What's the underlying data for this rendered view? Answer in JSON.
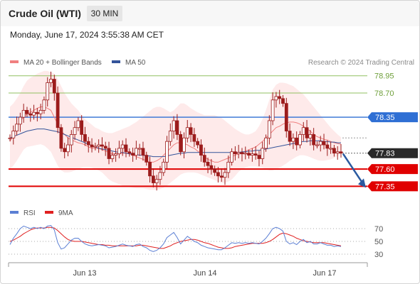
{
  "header": {
    "title": "Crude Oil (WTI)",
    "timeframe": "30 MIN",
    "datetime": "Monday, June 17, 2024 3:55:38 AM CET"
  },
  "legend": {
    "ma20_label": "MA 20 + Bollinger Bands",
    "ma50_label": "MA 50",
    "credit": "Research © 2024 Trading Central",
    "rsi_label": "RSI",
    "rsi9ma_label": "9MA"
  },
  "colors": {
    "ma20": "#f08080",
    "ma50": "#34549a",
    "bollinger_fill": "#fde3e3",
    "candle": "#9c1c1c",
    "resistance": "#90c060",
    "pivot": "#2f6fd4",
    "support": "#e00000",
    "last": "#2a2a2a",
    "rsi": "#5b7fd4",
    "rsi_ma": "#e02020",
    "arrow": "#2a5aa0"
  },
  "x_axis_labels": [
    "Jun 13",
    "Jun 14",
    "Jun 17"
  ],
  "chart_data": {
    "type": "candlestick",
    "price_ylim": [
      77.2,
      79.05
    ],
    "levels": [
      {
        "label": "78.95",
        "value": 78.95,
        "kind": "resistance"
      },
      {
        "label": "78.70",
        "value": 78.7,
        "kind": "resistance"
      },
      {
        "label": "78.35",
        "value": 78.35,
        "kind": "pivot"
      },
      {
        "label": "77.83",
        "value": 77.83,
        "kind": "last"
      },
      {
        "label": "77.60",
        "value": 77.6,
        "kind": "support"
      },
      {
        "label": "77.35",
        "value": 77.35,
        "kind": "support"
      }
    ],
    "closes": [
      78.05,
      78.15,
      78.25,
      78.35,
      78.45,
      78.4,
      78.38,
      78.42,
      78.4,
      78.45,
      78.6,
      78.85,
      78.9,
      78.7,
      78.2,
      77.9,
      77.85,
      77.95,
      78.1,
      78.2,
      78.3,
      78.1,
      78.0,
      77.95,
      77.92,
      77.93,
      77.95,
      77.93,
      77.9,
      77.75,
      77.8,
      77.82,
      77.9,
      77.95,
      77.85,
      77.83,
      77.8,
      77.9,
      77.9,
      77.8,
      77.7,
      77.5,
      77.4,
      77.45,
      77.55,
      77.7,
      78.0,
      78.15,
      78.3,
      78.1,
      77.85,
      78.05,
      78.2,
      78.1,
      78.0,
      77.95,
      77.8,
      77.7,
      77.65,
      77.6,
      77.55,
      77.5,
      77.48,
      77.55,
      77.7,
      77.85,
      77.82,
      77.84,
      77.82,
      77.83,
      77.8,
      77.82,
      77.8,
      77.75,
      77.9,
      78.05,
      78.3,
      78.6,
      78.65,
      78.62,
      78.55,
      78.15,
      78.0,
      78.05,
      77.95,
      78.1,
      78.2,
      78.05,
      78.1,
      77.95,
      77.95,
      78.0,
      77.95,
      77.9,
      77.9,
      77.83,
      77.85,
      77.83
    ],
    "ma20": [
      78.0,
      78.1,
      78.2,
      78.3,
      78.35,
      78.4,
      78.42,
      78.45,
      78.48,
      78.5,
      78.5,
      78.48,
      78.45,
      78.35,
      78.25,
      78.15,
      78.1,
      78.05,
      78.02,
      78.0,
      77.98,
      77.97,
      77.95,
      77.92,
      77.9,
      77.9,
      77.9,
      77.88,
      77.86,
      77.84,
      77.82,
      77.82,
      77.82,
      77.83,
      77.83,
      77.82,
      77.8,
      77.78,
      77.76,
      77.74,
      77.72,
      77.7,
      77.7,
      77.72,
      77.75,
      77.8,
      77.85,
      77.9,
      77.95,
      77.98,
      77.98,
      77.97,
      77.95,
      77.92,
      77.9,
      77.86,
      77.82,
      77.78,
      77.74,
      77.72,
      77.7,
      77.7,
      77.72,
      77.74,
      77.76,
      77.78,
      77.8,
      77.82,
      77.84,
      77.86,
      77.88,
      77.9,
      77.92,
      77.96,
      78.0,
      78.05,
      78.1,
      78.15,
      78.2,
      78.22,
      78.25,
      78.27,
      78.28,
      78.28,
      78.27,
      78.25,
      78.22,
      78.18,
      78.15,
      78.1,
      78.07,
      78.05,
      78.03,
      78.02,
      78.0,
      77.98,
      77.97,
      77.96
    ],
    "ma50": [
      78.05,
      78.07,
      78.09,
      78.11,
      78.13,
      78.15,
      78.16,
      78.17,
      78.18,
      78.18,
      78.18,
      78.17,
      78.16,
      78.15,
      78.14,
      78.12,
      78.1,
      78.08,
      78.06,
      78.04,
      78.02,
      78.0,
      77.98,
      77.96,
      77.94,
      77.92,
      77.9,
      77.89,
      77.88,
      77.87,
      77.86,
      77.85,
      77.84,
      77.84,
      77.83,
      77.82,
      77.82,
      77.81,
      77.8,
      77.8,
      77.79,
      77.79,
      77.78,
      77.78,
      77.78,
      77.78,
      77.79,
      77.8,
      77.81,
      77.82,
      77.83,
      77.83,
      77.84,
      77.84,
      77.84,
      77.84,
      77.84,
      77.84,
      77.84,
      77.84,
      77.84,
      77.84,
      77.84,
      77.84,
      77.84,
      77.84,
      77.84,
      77.84,
      77.85,
      77.85,
      77.86,
      77.86,
      77.87,
      77.87,
      77.88,
      77.89,
      77.9,
      77.91,
      77.92,
      77.93,
      77.94,
      77.95,
      77.96,
      77.97,
      77.98,
      77.99,
      78.0,
      78.0,
      78.01,
      78.01,
      78.01,
      78.01,
      78.0,
      78.0,
      77.99,
      77.99,
      77.98,
      77.98
    ],
    "bollinger_upper": [
      78.5,
      78.55,
      78.62,
      78.7,
      78.8,
      78.88,
      78.92,
      78.95,
      78.98,
      79.0,
      79.02,
      79.02,
      79.0,
      78.98,
      78.9,
      78.8,
      78.7,
      78.62,
      78.55,
      78.5,
      78.45,
      78.38,
      78.32,
      78.28,
      78.24,
      78.2,
      78.18,
      78.15,
      78.13,
      78.12,
      78.12,
      78.14,
      78.16,
      78.18,
      78.2,
      78.22,
      78.25,
      78.28,
      78.32,
      78.36,
      78.4,
      78.44,
      78.48,
      78.5,
      78.5,
      78.48,
      78.45,
      78.42,
      78.45,
      78.5,
      78.55,
      78.55,
      78.52,
      78.48,
      78.45,
      78.42,
      78.4,
      78.38,
      78.38,
      78.38,
      78.38,
      78.36,
      78.34,
      78.3,
      78.26,
      78.22,
      78.18,
      78.15,
      78.12,
      78.1,
      78.1,
      78.12,
      78.15,
      78.22,
      78.32,
      78.45,
      78.6,
      78.75,
      78.82,
      78.85,
      78.85,
      78.84,
      78.82,
      78.8,
      78.76,
      78.72,
      78.68,
      78.62,
      78.56,
      78.5,
      78.44,
      78.38,
      78.32,
      78.26,
      78.2,
      78.15,
      78.1,
      78.06
    ],
    "bollinger_lower": [
      77.6,
      77.65,
      77.72,
      77.8,
      77.88,
      77.92,
      77.93,
      77.94,
      77.95,
      77.96,
      77.94,
      77.9,
      77.85,
      77.75,
      77.65,
      77.58,
      77.55,
      77.55,
      77.56,
      77.58,
      77.6,
      77.62,
      77.63,
      77.63,
      77.62,
      77.6,
      77.58,
      77.55,
      77.5,
      77.45,
      77.42,
      77.4,
      77.38,
      77.36,
      77.35,
      77.34,
      77.33,
      77.32,
      77.32,
      77.32,
      77.31,
      77.3,
      77.3,
      77.3,
      77.31,
      77.33,
      77.36,
      77.4,
      77.44,
      77.48,
      77.52,
      77.54,
      77.55,
      77.55,
      77.55,
      77.54,
      77.52,
      77.5,
      77.48,
      77.46,
      77.44,
      77.42,
      77.4,
      77.4,
      77.42,
      77.45,
      77.5,
      77.56,
      77.6,
      77.62,
      77.64,
      77.64,
      77.64,
      77.63,
      77.62,
      77.6,
      77.58,
      77.58,
      77.6,
      77.62,
      77.65,
      77.68,
      77.72,
      77.75,
      77.78,
      77.8,
      77.8,
      77.79,
      77.77,
      77.75,
      77.73,
      77.72,
      77.72,
      77.73,
      77.74,
      77.76,
      77.79,
      77.82
    ],
    "rsi": [
      45,
      55,
      62,
      70,
      74,
      72,
      70,
      72,
      70,
      72,
      70,
      74,
      75,
      68,
      48,
      38,
      40,
      46,
      52,
      55,
      55,
      50,
      46,
      44,
      43,
      44,
      45,
      44,
      43,
      40,
      41,
      42,
      44,
      46,
      44,
      43,
      42,
      45,
      46,
      42,
      40,
      36,
      34,
      36,
      40,
      46,
      56,
      60,
      64,
      56,
      46,
      52,
      58,
      54,
      50,
      48,
      44,
      42,
      40,
      39,
      38,
      37,
      37,
      40,
      44,
      48,
      47,
      48,
      47,
      48,
      47,
      48,
      47,
      46,
      50,
      55,
      62,
      70,
      72,
      70,
      66,
      50,
      46,
      48,
      45,
      50,
      53,
      48,
      50,
      46,
      46,
      48,
      46,
      44,
      44,
      42,
      43,
      42
    ],
    "rsi_ma": [
      50,
      52,
      55,
      58,
      62,
      65,
      68,
      70,
      71,
      71,
      71,
      72,
      72,
      71,
      67,
      62,
      57,
      53,
      51,
      50,
      50,
      50,
      49,
      48,
      47,
      46,
      45,
      45,
      44,
      44,
      43,
      43,
      43,
      43,
      43,
      43,
      43,
      43,
      44,
      44,
      43,
      42,
      41,
      40,
      39,
      39,
      41,
      43,
      46,
      48,
      50,
      51,
      52,
      53,
      53,
      52,
      50,
      48,
      47,
      45,
      43,
      41,
      40,
      39,
      39,
      40,
      42,
      43,
      44,
      45,
      46,
      47,
      47,
      47,
      47,
      48,
      50,
      53,
      57,
      61,
      63,
      62,
      60,
      58,
      55,
      53,
      51,
      50,
      49,
      48,
      48,
      48,
      48,
      47,
      46,
      45,
      44,
      43
    ],
    "rsi_ylim": [
      20,
      80
    ],
    "rsi_levels": [
      70,
      50,
      30
    ],
    "forecast_arrow": {
      "from": 77.83,
      "to": 77.35
    }
  }
}
